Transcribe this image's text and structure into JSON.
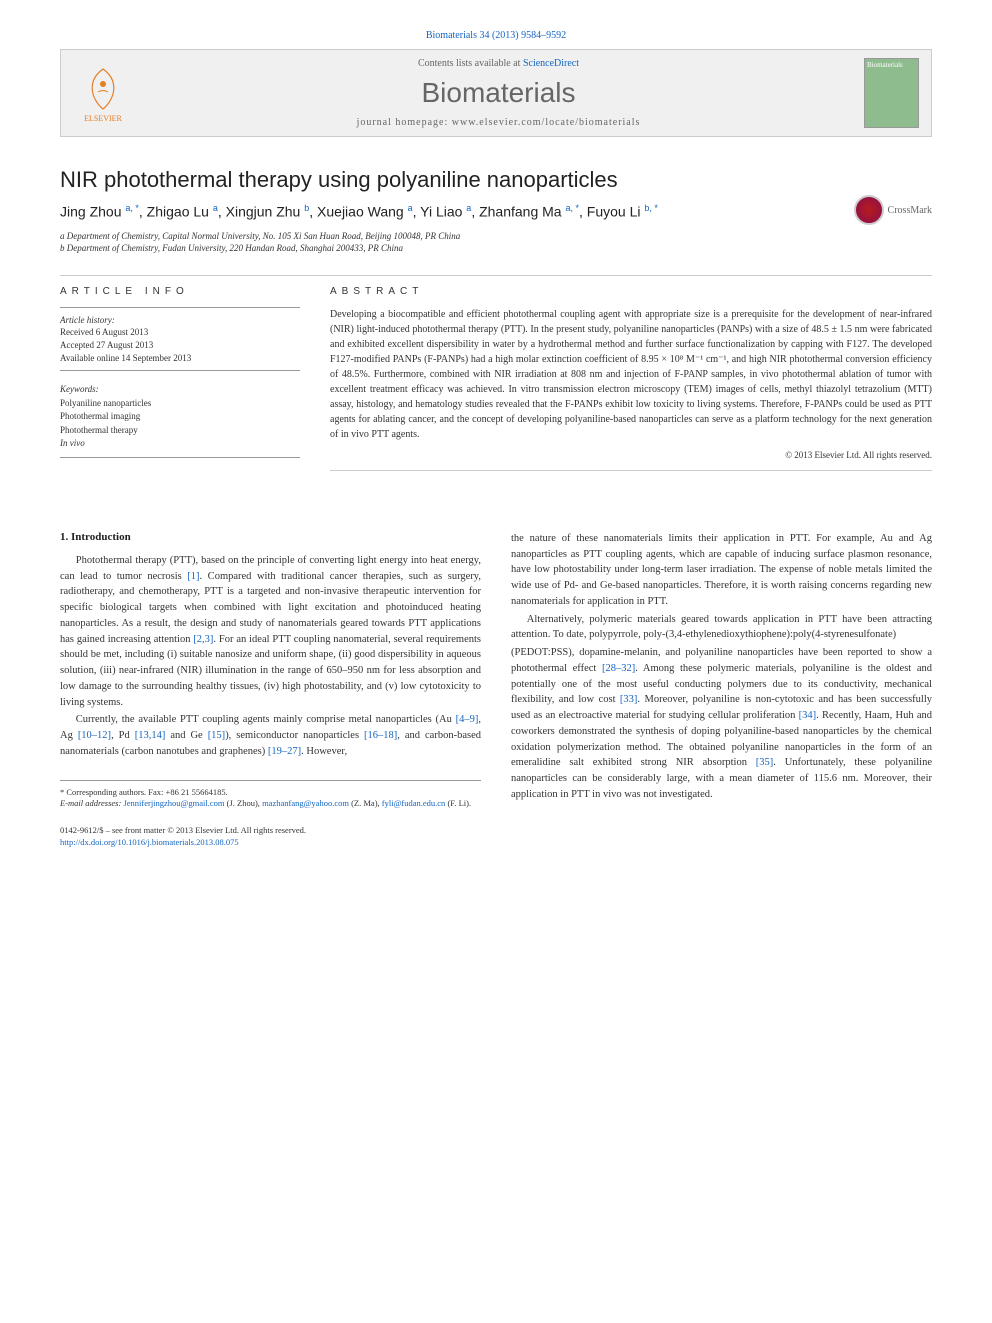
{
  "header": {
    "citation": "Biomaterials 34 (2013) 9584–9592",
    "contents_available": "Contents lists available at ",
    "sciencedirect": "ScienceDirect",
    "journal_name": "Biomaterials",
    "homepage_label": "journal homepage: ",
    "homepage_url": "www.elsevier.com/locate/biomaterials",
    "cover_text": "Biomaterials",
    "publisher": "ELSEVIER"
  },
  "article": {
    "title": "NIR photothermal therapy using polyaniline nanoparticles",
    "crossmark": "CrossMark",
    "authors_html": "Jing Zhou <sup>a, *</sup>, Zhigao Lu <sup>a</sup>, Xingjun Zhu <sup>b</sup>, Xuejiao Wang <sup>a</sup>, Yi Liao <sup>a</sup>, Zhanfang Ma <sup>a, *</sup>, Fuyou Li <sup>b, *</sup>",
    "affiliations": [
      "a Department of Chemistry, Capital Normal University, No. 105 Xi San Huan Road, Beijing 100048, PR China",
      "b Department of Chemistry, Fudan University, 220 Handan Road, Shanghai 200433, PR China"
    ]
  },
  "info": {
    "section_label": "ARTICLE INFO",
    "history_label": "Article history:",
    "received": "Received 6 August 2013",
    "accepted": "Accepted 27 August 2013",
    "online": "Available online 14 September 2013",
    "keywords_label": "Keywords:",
    "keywords": [
      "Polyaniline nanoparticles",
      "Photothermal imaging",
      "Photothermal therapy",
      "In vivo"
    ]
  },
  "abstract": {
    "label": "ABSTRACT",
    "text": "Developing a biocompatible and efficient photothermal coupling agent with appropriate size is a prerequisite for the development of near-infrared (NIR) light-induced photothermal therapy (PTT). In the present study, polyaniline nanoparticles (PANPs) with a size of 48.5 ± 1.5 nm were fabricated and exhibited excellent dispersibility in water by a hydrothermal method and further surface functionalization by capping with F127. The developed F127-modified PANPs (F-PANPs) had a high molar extinction coefficient of 8.95 × 10⁸ M⁻¹ cm⁻¹, and high NIR photothermal conversion efficiency of 48.5%. Furthermore, combined with NIR irradiation at 808 nm and injection of F-PANP samples, in vivo photothermal ablation of tumor with excellent treatment efficacy was achieved. In vitro transmission electron microscopy (TEM) images of cells, methyl thiazolyl tetrazolium (MTT) assay, histology, and hematology studies revealed that the F-PANPs exhibit low toxicity to living systems. Therefore, F-PANPs could be used as PTT agents for ablating cancer, and the concept of developing polyaniline-based nanoparticles can serve as a platform technology for the next generation of in vivo PTT agents.",
    "copyright": "© 2013 Elsevier Ltd. All rights reserved."
  },
  "body": {
    "intro_header": "1. Introduction",
    "col1_p1": "Photothermal therapy (PTT), based on the principle of converting light energy into heat energy, can lead to tumor necrosis [1]. Compared with traditional cancer therapies, such as surgery, radiotherapy, and chemotherapy, PTT is a targeted and non-invasive therapeutic intervention for specific biological targets when combined with light excitation and photoinduced heating nanoparticles. As a result, the design and study of nanomaterials geared towards PTT applications has gained increasing attention [2,3]. For an ideal PTT coupling nanomaterial, several requirements should be met, including (i) suitable nanosize and uniform shape, (ii) good dispersibility in aqueous solution, (iii) near-infrared (NIR) illumination in the range of 650–950 nm for less absorption and low damage to the surrounding healthy tissues, (iv) high photostability, and (v) low cytotoxicity to living systems.",
    "col1_p2": "Currently, the available PTT coupling agents mainly comprise metal nanoparticles (Au [4–9], Ag [10–12], Pd [13,14] and Ge [15]), semiconductor nanoparticles [16–18], and carbon-based nanomaterials (carbon nanotubes and graphenes) [19–27]. However,",
    "col2_p1": "the nature of these nanomaterials limits their application in PTT. For example, Au and Ag nanoparticles as PTT coupling agents, which are capable of inducing surface plasmon resonance, have low photostability under long-term laser irradiation. The expense of noble metals limited the wide use of Pd- and Ge-based nanoparticles. Therefore, it is worth raising concerns regarding new nanomaterials for application in PTT.",
    "col2_p2": "Alternatively, polymeric materials geared towards application in PTT have been attracting attention. To date, polypyrrole, poly-(3,4-ethylenedioxythiophene):poly(4-styrenesulfonate)",
    "col2_p3": "(PEDOT:PSS), dopamine-melanin, and polyaniline nanoparticles have been reported to show a photothermal effect [28–32]. Among these polymeric materials, polyaniline is the oldest and potentially one of the most useful conducting polymers due to its conductivity, mechanical flexibility, and low cost [33]. Moreover, polyaniline is non-cytotoxic and has been successfully used as an electroactive material for studying cellular proliferation [34]. Recently, Haam, Huh and coworkers demonstrated the synthesis of doping polyaniline-based nanoparticles by the chemical oxidation polymerization method. The obtained polyaniline nanoparticles in the form of an emeralidine salt exhibited strong NIR absorption [35]. Unfortunately, these polyaniline nanoparticles can be considerably large, with a mean diameter of 115.6 nm. Moreover, their application in PTT in vivo was not investigated."
  },
  "footer": {
    "corr": "* Corresponding authors. Fax: +86 21 55664185.",
    "email_label": "E-mail addresses: ",
    "email1": "Jenniferjingzhou@gmail.com",
    "email1_who": " (J. Zhou), ",
    "email2": "mazhanfang@yahoo.com",
    "email2_who": " (Z. Ma), ",
    "email3": "fyli@fudan.edu.cn",
    "email3_who": " (F. Li).",
    "issn": "0142-9612/$ – see front matter © 2013 Elsevier Ltd. All rights reserved.",
    "doi": "http://dx.doi.org/10.1016/j.biomaterials.2013.08.075"
  },
  "colors": {
    "link": "#1565c0",
    "text": "#333333",
    "bar_bg": "#f0f0f0",
    "elsevier_orange": "#e67e22",
    "cover_green": "#8fbc8f"
  }
}
